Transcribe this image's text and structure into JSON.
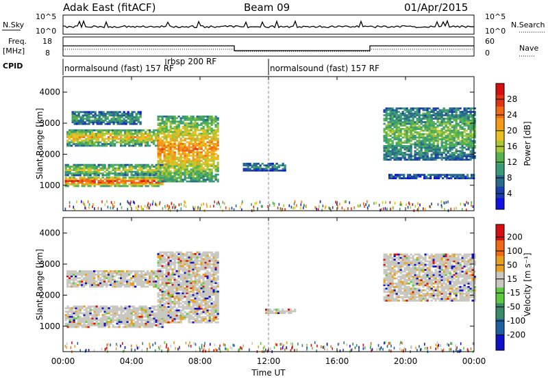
{
  "header": {
    "station": "Adak East (fitACF)",
    "beam": "Beam 09",
    "date": "01/Apr/2015"
  },
  "strip_panels": {
    "nsky_label": "N.Sky",
    "nsky_ticks": [
      "10^5",
      "10^0"
    ],
    "nsearch_label": "N.Search",
    "nsearch_ticks": [
      "10^5",
      "10^0"
    ],
    "freq_label": "Freq.",
    "freq_unit": "[MHz]",
    "freq_ticks": [
      "18",
      "8"
    ],
    "nave_label": "Nave",
    "nave_ticks": [
      "60",
      "0"
    ],
    "cpid_label": "CPID",
    "modes": [
      {
        "name": "normalsound (fast) 157 RF",
        "start_h": 0,
        "end_h": 6
      },
      {
        "name": "rbsp 200 RF",
        "start_h": 6,
        "end_h": 12
      },
      {
        "name": "normalsound (fast) 157 RF",
        "start_h": 12,
        "end_h": 24
      }
    ]
  },
  "chart_data": [
    {
      "type": "heatmap",
      "title": "",
      "ylabel": "Slant Range [km]",
      "xlabel": "",
      "xlim_hours": [
        0,
        24
      ],
      "ylim_km": [
        180,
        4500
      ],
      "y_ticks": [
        "1000",
        "2000",
        "3000",
        "4000"
      ],
      "colorbar": {
        "label": "Power [dB]",
        "ticks": [
          "4",
          "8",
          "12",
          "16",
          "20",
          "24",
          "28"
        ],
        "colors": [
          "#1010e0",
          "#1b3fa8",
          "#2a6a8a",
          "#3a9a78",
          "#55b24e",
          "#a8c83a",
          "#e8c020",
          "#f39a1a",
          "#ee6a15",
          "#e03515",
          "#d41010"
        ]
      },
      "echo_bands": [
        {
          "t0": 0.1,
          "t1": 5.8,
          "r0": 950,
          "r1": 1250,
          "level": 0.95
        },
        {
          "t0": 0.1,
          "t1": 5.8,
          "r0": 1300,
          "r1": 1650,
          "level": 0.55
        },
        {
          "t0": 0.2,
          "t1": 5.5,
          "r0": 2250,
          "r1": 2800,
          "level": 0.65
        },
        {
          "t0": 0.5,
          "t1": 4.5,
          "r0": 2950,
          "r1": 3350,
          "level": 0.35
        },
        {
          "t0": 5.5,
          "t1": 9.0,
          "r0": 1100,
          "r1": 3200,
          "level": 0.75
        },
        {
          "t0": 10.5,
          "t1": 13.0,
          "r0": 1450,
          "r1": 1700,
          "level": 0.3
        },
        {
          "t0": 18.7,
          "t1": 24.0,
          "r0": 1800,
          "r1": 3500,
          "level": 0.45
        },
        {
          "t0": 19.0,
          "t1": 24.0,
          "r0": 1200,
          "r1": 1350,
          "level": 0.2
        }
      ]
    },
    {
      "type": "heatmap",
      "title": "",
      "ylabel": "Slant Range [km]",
      "xlabel": "Time UT",
      "xlim_hours": [
        0,
        24
      ],
      "x_ticks": [
        "00:00",
        "04:00",
        "08:00",
        "12:00",
        "16:00",
        "20:00",
        "00:00"
      ],
      "ylim_km": [
        180,
        4500
      ],
      "y_ticks": [
        "1000",
        "2000",
        "3000",
        "4000"
      ],
      "colorbar": {
        "label": "Velocity [m s⁻¹]",
        "ticks": [
          "200",
          "100",
          "50",
          "15",
          "-15",
          "-50",
          "-100",
          "-200"
        ],
        "colors": [
          "#1010c8",
          "#1f5fa0",
          "#3a8a6a",
          "#5ec840",
          "#c8c8c0",
          "#e8a020",
          "#ee6a15",
          "#d41010"
        ]
      },
      "echo_bands": [
        {
          "t0": 0.1,
          "t1": 5.8,
          "r0": 950,
          "r1": 1650,
          "level": 0.5
        },
        {
          "t0": 0.2,
          "t1": 5.5,
          "r0": 2250,
          "r1": 2800,
          "level": 0.5
        },
        {
          "t0": 5.5,
          "t1": 9.0,
          "r0": 1100,
          "r1": 3400,
          "level": 0.5
        },
        {
          "t0": 11.8,
          "t1": 13.5,
          "r0": 1400,
          "r1": 1550,
          "level": 0.35
        },
        {
          "t0": 18.7,
          "t1": 24.0,
          "r0": 1800,
          "r1": 3300,
          "level": 0.5
        }
      ]
    }
  ]
}
